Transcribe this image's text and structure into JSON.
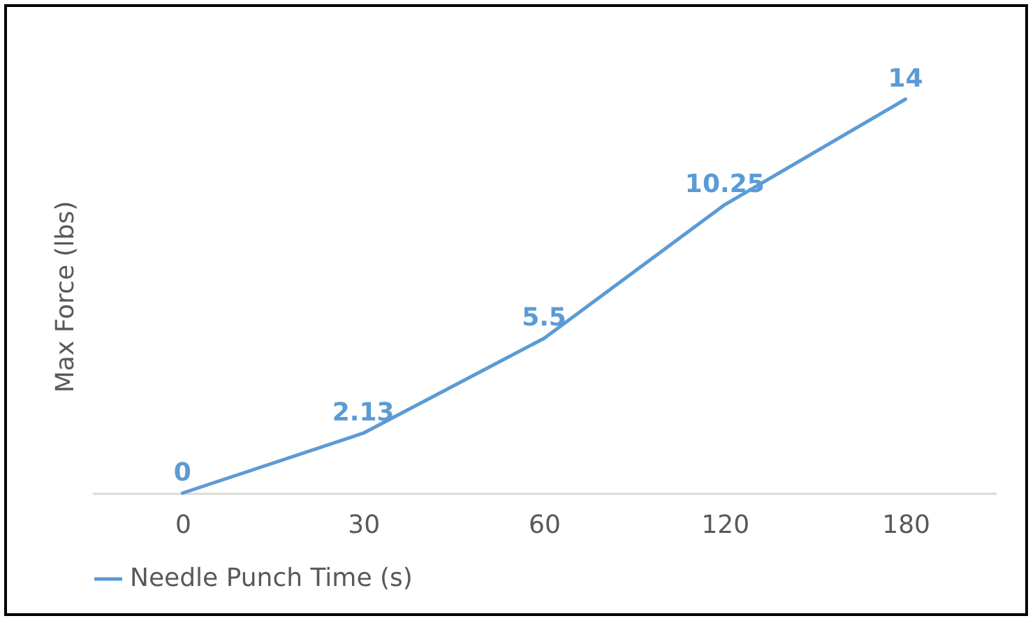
{
  "chart_data": {
    "type": "line",
    "ylabel": "Max  Force (lbs)",
    "categories": [
      "0",
      "30",
      "60",
      "120",
      "180"
    ],
    "series": [
      {
        "name": "Needle Punch Time (s)",
        "color": "#5b9bd5",
        "values": [
          0,
          2.13,
          5.5,
          10.25,
          14
        ]
      }
    ],
    "data_labels": true,
    "legend": "bottom",
    "tick_labels": "x",
    "marker": "none",
    "line_style": "solid"
  }
}
